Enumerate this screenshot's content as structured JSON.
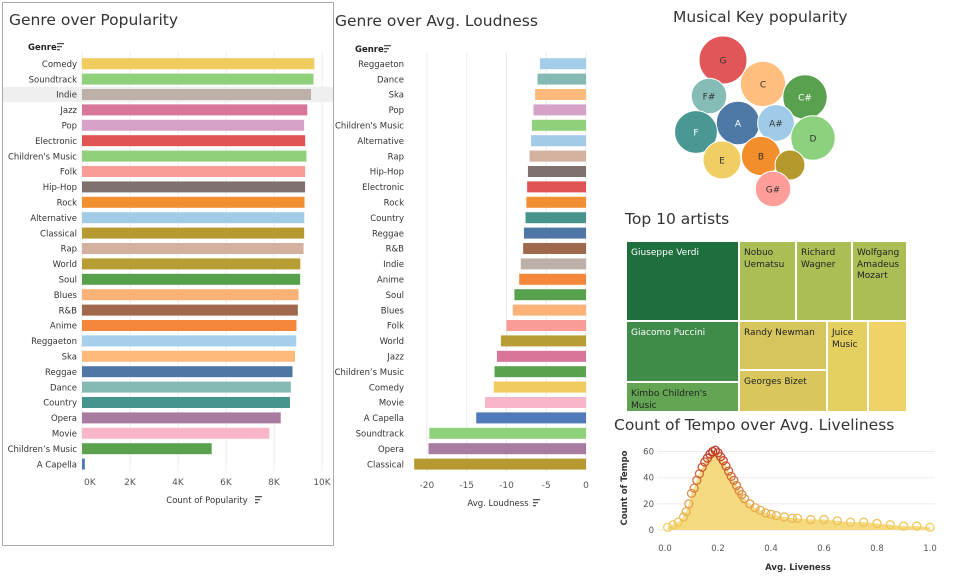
{
  "popularity": {
    "title": "Genre over Popularity",
    "genre_header": "Genre",
    "x_axis_label": "Count of Popularity",
    "sort_icon": "sort-descending-icon",
    "highlighted": "Indie",
    "chart_data": {
      "type": "bar",
      "orientation": "horizontal",
      "categories": [
        "Comedy",
        "Soundtrack",
        "Indie",
        "Jazz",
        "Pop",
        "Electronic",
        "Children's Music",
        "Folk",
        "Hip-Hop",
        "Rock",
        "Alternative",
        "Classical",
        "Rap",
        "World",
        "Soul",
        "Blues",
        "R&B",
        "Anime",
        "Reggaeton",
        "Ska",
        "Reggae",
        "Dance",
        "Country",
        "Opera",
        "Movie",
        "Children’s Music",
        "A Capella"
      ],
      "values": [
        9681,
        9646,
        9543,
        9386,
        9256,
        9299,
        9353,
        9299,
        9295,
        9272,
        9263,
        9256,
        9232,
        9096,
        9089,
        9023,
        8992,
        8936,
        8927,
        8874,
        8771,
        8701,
        8664,
        8280,
        7806,
        5403,
        119
      ],
      "colors": [
        "#f0cb5e",
        "#8fd17a",
        "#bcb0a8",
        "#d9759a",
        "#d7a2c8",
        "#e05454",
        "#90d07c",
        "#f99b96",
        "#7f7170",
        "#f28f31",
        "#a2cbe8",
        "#b69931",
        "#d4b09e",
        "#b69d34",
        "#57a04c",
        "#fbb276",
        "#a0684d",
        "#f4873a",
        "#a7cfec",
        "#feb97c",
        "#4f77a6",
        "#84bab3",
        "#46948c",
        "#a77ca0",
        "#f9b6c8",
        "#5aa24e",
        "#4f79b8"
      ],
      "xlim": [
        0,
        10000
      ],
      "x_ticks": [
        "0K",
        "2K",
        "4K",
        "6K",
        "8K",
        "10K"
      ],
      "grid": true
    }
  },
  "loudness": {
    "title": "Genre over Avg. Loudness",
    "genre_header": "Genre",
    "x_axis_label": "Avg. Loudness",
    "sort_icon": "sort-descending-icon",
    "chart_data": {
      "type": "bar",
      "orientation": "horizontal",
      "categories": [
        "Reggaeton",
        "Dance",
        "Ska",
        "Pop",
        "Children's Music",
        "Alternative",
        "Rap",
        "Hip-Hop",
        "Electronic",
        "Rock",
        "Country",
        "Reggae",
        "R&B",
        "Indie",
        "Anime",
        "Soul",
        "Blues",
        "Folk",
        "World",
        "Jazz",
        "Children’s Music",
        "Comedy",
        "Movie",
        "A Capella",
        "Soundtrack",
        "Opera",
        "Classical"
      ],
      "values": [
        -5.8,
        -6.1,
        -6.4,
        -6.6,
        -6.8,
        -6.9,
        -7.1,
        -7.3,
        -7.4,
        -7.5,
        -7.6,
        -7.8,
        -7.9,
        -8.2,
        -8.4,
        -9.0,
        -9.2,
        -10.0,
        -10.7,
        -11.2,
        -11.5,
        -11.6,
        -12.7,
        -13.8,
        -19.7,
        -19.8,
        -21.6
      ],
      "colors": [
        "#a4cde9",
        "#84bab3",
        "#feb97c",
        "#d7a2c8",
        "#90d07c",
        "#a2cbe8",
        "#d4b09e",
        "#7f7170",
        "#e05454",
        "#f28f31",
        "#46948c",
        "#4f77a6",
        "#a0684d",
        "#bcb0a8",
        "#f4873a",
        "#57a04c",
        "#fbb276",
        "#f99b96",
        "#b69d34",
        "#d9759a",
        "#5aa24e",
        "#f0cb5e",
        "#f9b6c8",
        "#4f79b8",
        "#8fd17a",
        "#a77ca0",
        "#b69931"
      ],
      "xlim": [
        -22,
        0
      ],
      "x_ticks": [
        -20,
        -15,
        -10,
        -5,
        0
      ],
      "grid": true
    }
  },
  "keys": {
    "title": "Musical Key popularity",
    "chart_data": {
      "type": "packed-bubble",
      "items": [
        {
          "label": "G",
          "value": 1.0,
          "color": "#e15759"
        },
        {
          "label": "C",
          "value": 0.85,
          "color": "#ffbe7d"
        },
        {
          "label": "C#",
          "value": 0.8,
          "color": "#59a14f"
        },
        {
          "label": "F#",
          "value": 0.4,
          "color": "#86bcb6"
        },
        {
          "label": "A",
          "value": 0.75,
          "color": "#4e79a7"
        },
        {
          "label": "A#",
          "value": 0.45,
          "color": "#a0cbe8"
        },
        {
          "label": "D",
          "value": 0.8,
          "color": "#8cd17d"
        },
        {
          "label": "F",
          "value": 0.72,
          "color": "#499894"
        },
        {
          "label": "E",
          "value": 0.5,
          "color": "#f1ce63"
        },
        {
          "label": "B",
          "value": 0.55,
          "color": "#f28e2b"
        },
        {
          "label": "",
          "value": 0.22,
          "color": "#b6992d"
        },
        {
          "label": "G#",
          "value": 0.4,
          "color": "#ff9d9a"
        }
      ]
    }
  },
  "artists": {
    "title": "Top 10 artists",
    "chart_data": {
      "type": "treemap",
      "items": [
        {
          "label": "Giuseppe Verdi",
          "color": "#1f6e3d",
          "text_color": "#ffffff"
        },
        {
          "label": "Nobuo Uematsu",
          "color": "#a9bf56",
          "text_color": "#222222"
        },
        {
          "label": "Richard Wagner",
          "color": "#a9bf56",
          "text_color": "#222222"
        },
        {
          "label": "Wolfgang Amadeus Mozart",
          "color": "#a9bf56",
          "text_color": "#222222"
        },
        {
          "label": "Giacomo Puccini",
          "color": "#3f8b4a",
          "text_color": "#ffffff"
        },
        {
          "label": "Randy Newman",
          "color": "#d6c55d",
          "text_color": "#222222"
        },
        {
          "label": "Juice Music",
          "color": "#e3d061",
          "text_color": "#222222"
        },
        {
          "label": "Kimbo Children's Music",
          "color": "#63a552",
          "text_color": "#222222"
        },
        {
          "label": "Georges Bizet",
          "color": "#d9c75e",
          "text_color": "#222222"
        },
        {
          "label": "",
          "color": "#efd268",
          "text_color": "#222222"
        }
      ]
    }
  },
  "tempo": {
    "title": "Count of Tempo over Avg. Liveliness",
    "x_axis_label": "Avg. Liveness",
    "y_axis_label": "Count of Tempo",
    "chart_data": {
      "type": "scatter",
      "x": [
        0.01,
        0.03,
        0.05,
        0.07,
        0.08,
        0.09,
        0.1,
        0.11,
        0.12,
        0.13,
        0.14,
        0.15,
        0.16,
        0.17,
        0.18,
        0.19,
        0.2,
        0.21,
        0.22,
        0.23,
        0.24,
        0.25,
        0.26,
        0.27,
        0.28,
        0.29,
        0.3,
        0.32,
        0.34,
        0.36,
        0.38,
        0.4,
        0.42,
        0.45,
        0.48,
        0.5,
        0.55,
        0.6,
        0.65,
        0.7,
        0.75,
        0.8,
        0.85,
        0.9,
        0.95,
        1.0
      ],
      "y": [
        2,
        4,
        6,
        10,
        14,
        20,
        28,
        32,
        38,
        43,
        48,
        52,
        55,
        58,
        60,
        61,
        59,
        56,
        53,
        49,
        45,
        41,
        38,
        34,
        30,
        27,
        24,
        20,
        17,
        15,
        13,
        12,
        11,
        10,
        9,
        9,
        8,
        8,
        7,
        6,
        6,
        5,
        4,
        3,
        3,
        2
      ],
      "xlim": [
        0,
        1.0
      ],
      "ylim": [
        0,
        65
      ],
      "x_ticks": [
        "0.0",
        "0.2",
        "0.4",
        "0.6",
        "0.8",
        "1.0"
      ],
      "y_ticks": [
        0,
        20,
        40,
        60
      ],
      "color_low": "#f4d35e",
      "color_high": "#c0392b"
    }
  }
}
